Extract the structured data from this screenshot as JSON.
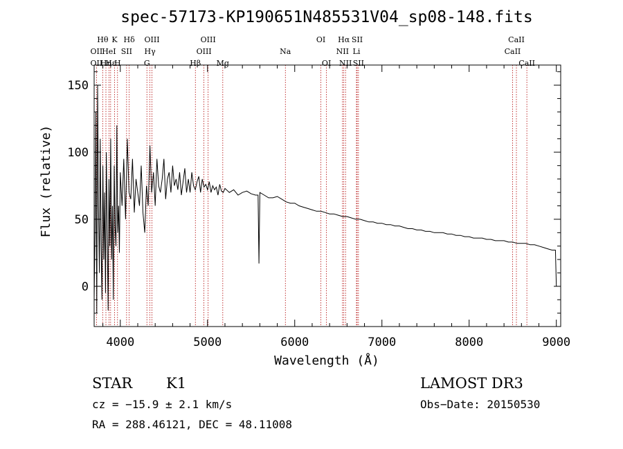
{
  "chart_data": {
    "type": "line",
    "title": "spec-57173-KP190651N485531V04_sp08-148.fits",
    "xlabel": "Wavelength (Å)",
    "ylabel": "Flux (relative)",
    "xlim": [
      3700,
      9050
    ],
    "ylim": [
      -30,
      165
    ],
    "x_ticks": [
      4000,
      5000,
      6000,
      7000,
      8000,
      9000
    ],
    "x_tick_labels": [
      "4000",
      "5000",
      "6000",
      "7000",
      "8000",
      "9000"
    ],
    "y_ticks": [
      0,
      50,
      100,
      150
    ],
    "y_tick_labels": [
      "0",
      "50",
      "100",
      "150"
    ],
    "grid": false,
    "series": [
      {
        "name": "flux",
        "x": [
          3700,
          3710,
          3720,
          3730,
          3740,
          3750,
          3760,
          3770,
          3780,
          3790,
          3800,
          3810,
          3820,
          3830,
          3840,
          3850,
          3860,
          3870,
          3880,
          3890,
          3900,
          3910,
          3920,
          3930,
          3940,
          3950,
          3960,
          3970,
          3980,
          3990,
          4000,
          4020,
          4040,
          4060,
          4080,
          4100,
          4120,
          4140,
          4160,
          4180,
          4200,
          4220,
          4240,
          4260,
          4280,
          4300,
          4320,
          4340,
          4360,
          4380,
          4400,
          4420,
          4440,
          4460,
          4480,
          4500,
          4520,
          4540,
          4560,
          4580,
          4600,
          4620,
          4640,
          4660,
          4680,
          4700,
          4720,
          4740,
          4760,
          4780,
          4800,
          4820,
          4840,
          4860,
          4880,
          4900,
          4920,
          4940,
          4960,
          4980,
          5000,
          5020,
          5040,
          5060,
          5080,
          5100,
          5120,
          5140,
          5160,
          5180,
          5200,
          5250,
          5300,
          5350,
          5400,
          5450,
          5500,
          5550,
          5580,
          5590,
          5600,
          5650,
          5700,
          5750,
          5800,
          5850,
          5900,
          5950,
          6000,
          6050,
          6100,
          6150,
          6200,
          6250,
          6300,
          6350,
          6400,
          6450,
          6500,
          6550,
          6600,
          6650,
          6700,
          6750,
          6800,
          6850,
          6900,
          6950,
          7000,
          7050,
          7100,
          7150,
          7200,
          7250,
          7300,
          7350,
          7400,
          7450,
          7500,
          7550,
          7600,
          7650,
          7700,
          7750,
          7800,
          7850,
          7900,
          7950,
          8000,
          8050,
          8100,
          8150,
          8200,
          8250,
          8300,
          8350,
          8400,
          8450,
          8500,
          8550,
          8600,
          8650,
          8700,
          8750,
          8800,
          8850,
          8900,
          8950,
          8990,
          9000
        ],
        "y": [
          -10,
          40,
          130,
          -20,
          150,
          60,
          10,
          110,
          30,
          -10,
          90,
          20,
          70,
          -5,
          100,
          40,
          -18,
          80,
          30,
          110,
          20,
          60,
          -10,
          90,
          45,
          30,
          120,
          40,
          60,
          25,
          85,
          60,
          95,
          50,
          110,
          70,
          65,
          95,
          55,
          80,
          70,
          60,
          90,
          55,
          40,
          75,
          60,
          105,
          70,
          85,
          60,
          95,
          75,
          70,
          80,
          95,
          65,
          80,
          85,
          70,
          90,
          75,
          80,
          72,
          85,
          68,
          78,
          88,
          70,
          80,
          70,
          85,
          75,
          72,
          78,
          82,
          70,
          80,
          74,
          76,
          72,
          78,
          70,
          75,
          72,
          74,
          68,
          76,
          71,
          70,
          73,
          70,
          72,
          68,
          70,
          71,
          69,
          68,
          68,
          17,
          70,
          68,
          66,
          66,
          67,
          65,
          63,
          62,
          62,
          60,
          59,
          58,
          57,
          56,
          56,
          55,
          54,
          54,
          53,
          52,
          52,
          51,
          50,
          50,
          49,
          48,
          48,
          47,
          47,
          46,
          46,
          45,
          45,
          44,
          43,
          43,
          42,
          42,
          41,
          41,
          40,
          40,
          40,
          39,
          39,
          38,
          38,
          37,
          37,
          36,
          36,
          36,
          35,
          35,
          34,
          34,
          34,
          33,
          33,
          32,
          32,
          32,
          31,
          31,
          30,
          29,
          28,
          27,
          27,
          0
        ]
      }
    ],
    "line_markers": [
      {
        "label": "Hθ",
        "x": 3798,
        "row": 0
      },
      {
        "label": "OII",
        "x": 3727,
        "row": 1
      },
      {
        "label": "OII",
        "x": 3727,
        "row": 2
      },
      {
        "label": "Hε",
        "x": 3889,
        "row": 2
      },
      {
        "label": "HeI",
        "x": 3870,
        "row": 1
      },
      {
        "label": "K",
        "x": 3934,
        "row": 0
      },
      {
        "label": "Hη",
        "x": 3835,
        "row": 2
      },
      {
        "label": "H",
        "x": 3968,
        "row": 2
      },
      {
        "label": "Hδ",
        "x": 4102,
        "row": 0
      },
      {
        "label": "SII",
        "x": 4072,
        "row": 1
      },
      {
        "label": "OIII",
        "x": 4363,
        "row": 0
      },
      {
        "label": "Hγ",
        "x": 4340,
        "row": 1
      },
      {
        "label": "G",
        "x": 4305,
        "row": 2
      },
      {
        "label": "Hβ",
        "x": 4861,
        "row": 2
      },
      {
        "label": "OIII",
        "x": 5007,
        "row": 0
      },
      {
        "label": "OIII",
        "x": 4959,
        "row": 1
      },
      {
        "label": "Mg",
        "x": 5175,
        "row": 2
      },
      {
        "label": "Na",
        "x": 5893,
        "row": 1
      },
      {
        "label": "OI",
        "x": 6300,
        "row": 0
      },
      {
        "label": "OI",
        "x": 6364,
        "row": 2
      },
      {
        "label": "Hα",
        "x": 6563,
        "row": 0
      },
      {
        "label": "NII",
        "x": 6548,
        "row": 1
      },
      {
        "label": "NII",
        "x": 6583,
        "row": 2
      },
      {
        "label": "SII",
        "x": 6716,
        "row": 0
      },
      {
        "label": "Li",
        "x": 6708,
        "row": 1
      },
      {
        "label": "SII",
        "x": 6731,
        "row": 2
      },
      {
        "label": "CaII",
        "x": 8542,
        "row": 0
      },
      {
        "label": "CaII",
        "x": 8498,
        "row": 1
      },
      {
        "label": "CaII",
        "x": 8662,
        "row": 2
      }
    ]
  },
  "info": {
    "class": "STAR",
    "subclass": "K1",
    "survey": "LAMOST DR3",
    "cz": "cz = −15.9 ± 2.1 km/s",
    "obs_date": "Obs−Date: 20150530",
    "coords": "RA = 288.46121, DEC =  48.11008"
  }
}
